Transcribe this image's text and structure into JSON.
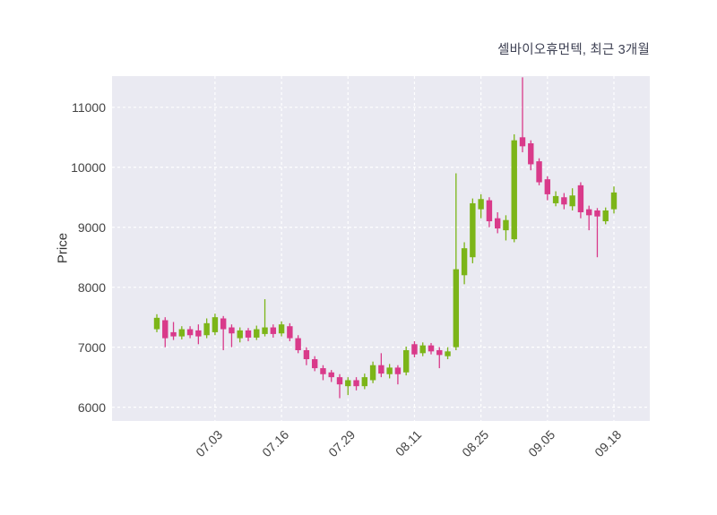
{
  "header": {
    "title": "셀바이오휴먼텍, 최근 3개월"
  },
  "axes": {
    "ylabel": "Price"
  },
  "chart_data": {
    "type": "candlestick",
    "title": "셀바이오휴먼텍, 최근 3개월",
    "ylabel": "Price",
    "ylim": [
      5770,
      11520
    ],
    "grid": "white-dashed",
    "legend": "none",
    "background": "#eaeaf2",
    "up_color": "#7cb518",
    "down_color": "#d93a8a",
    "y_ticks": [
      6000,
      7000,
      8000,
      9000,
      10000,
      11000
    ],
    "x_ticks": [
      {
        "label": "07.03",
        "index": 7
      },
      {
        "label": "07.16",
        "index": 15
      },
      {
        "label": "07.29",
        "index": 23
      },
      {
        "label": "08.11",
        "index": 31
      },
      {
        "label": "08.25",
        "index": 39
      },
      {
        "label": "09.05",
        "index": 47
      },
      {
        "label": "09.18",
        "index": 55
      }
    ],
    "ohlc_format": [
      "open",
      "high",
      "low",
      "close"
    ],
    "candles": [
      [
        7300,
        7550,
        7250,
        7490
      ],
      [
        7450,
        7500,
        7000,
        7150
      ],
      [
        7250,
        7420,
        7120,
        7180
      ],
      [
        7180,
        7350,
        7130,
        7300
      ],
      [
        7300,
        7350,
        7150,
        7200
      ],
      [
        7280,
        7380,
        7050,
        7180
      ],
      [
        7200,
        7480,
        7150,
        7400
      ],
      [
        7250,
        7560,
        7200,
        7500
      ],
      [
        7480,
        7520,
        6950,
        7300
      ],
      [
        7330,
        7380,
        7000,
        7230
      ],
      [
        7150,
        7330,
        7080,
        7280
      ],
      [
        7280,
        7320,
        7100,
        7160
      ],
      [
        7160,
        7360,
        7120,
        7300
      ],
      [
        7220,
        7800,
        7180,
        7330
      ],
      [
        7330,
        7380,
        7160,
        7220
      ],
      [
        7230,
        7430,
        7180,
        7380
      ],
      [
        7350,
        7400,
        7100,
        7150
      ],
      [
        7150,
        7200,
        6900,
        6950
      ],
      [
        6950,
        7000,
        6700,
        6800
      ],
      [
        6800,
        6850,
        6600,
        6650
      ],
      [
        6650,
        6700,
        6450,
        6550
      ],
      [
        6580,
        6620,
        6420,
        6500
      ],
      [
        6500,
        6550,
        6150,
        6380
      ],
      [
        6350,
        6500,
        6200,
        6450
      ],
      [
        6450,
        6500,
        6280,
        6350
      ],
      [
        6350,
        6560,
        6300,
        6500
      ],
      [
        6450,
        6760,
        6400,
        6700
      ],
      [
        6700,
        6900,
        6500,
        6560
      ],
      [
        6550,
        6720,
        6480,
        6660
      ],
      [
        6660,
        6700,
        6380,
        6550
      ],
      [
        6580,
        7010,
        6530,
        6950
      ],
      [
        7050,
        7100,
        6830,
        6880
      ],
      [
        6900,
        7080,
        6850,
        7030
      ],
      [
        7030,
        7070,
        6880,
        6930
      ],
      [
        6950,
        7000,
        6650,
        6870
      ],
      [
        6850,
        7000,
        6800,
        6930
      ],
      [
        7000,
        9900,
        6950,
        8300
      ],
      [
        8200,
        8750,
        8050,
        8650
      ],
      [
        8500,
        9480,
        8400,
        9400
      ],
      [
        9300,
        9550,
        9150,
        9470
      ],
      [
        9450,
        9500,
        9000,
        9100
      ],
      [
        9150,
        9250,
        8900,
        8980
      ],
      [
        8950,
        9200,
        8780,
        9120
      ],
      [
        8800,
        10550,
        8750,
        10450
      ],
      [
        10500,
        11500,
        10250,
        10350
      ],
      [
        10400,
        10450,
        9950,
        10050
      ],
      [
        10100,
        10150,
        9700,
        9750
      ],
      [
        9800,
        9850,
        9450,
        9550
      ],
      [
        9400,
        9600,
        9350,
        9520
      ],
      [
        9500,
        9570,
        9300,
        9380
      ],
      [
        9350,
        9650,
        9280,
        9530
      ],
      [
        9700,
        9750,
        9150,
        9250
      ],
      [
        9300,
        9360,
        8950,
        9200
      ],
      [
        9280,
        9320,
        8500,
        9180
      ],
      [
        9100,
        9330,
        9050,
        9280
      ],
      [
        9300,
        9680,
        9230,
        9580
      ]
    ]
  }
}
